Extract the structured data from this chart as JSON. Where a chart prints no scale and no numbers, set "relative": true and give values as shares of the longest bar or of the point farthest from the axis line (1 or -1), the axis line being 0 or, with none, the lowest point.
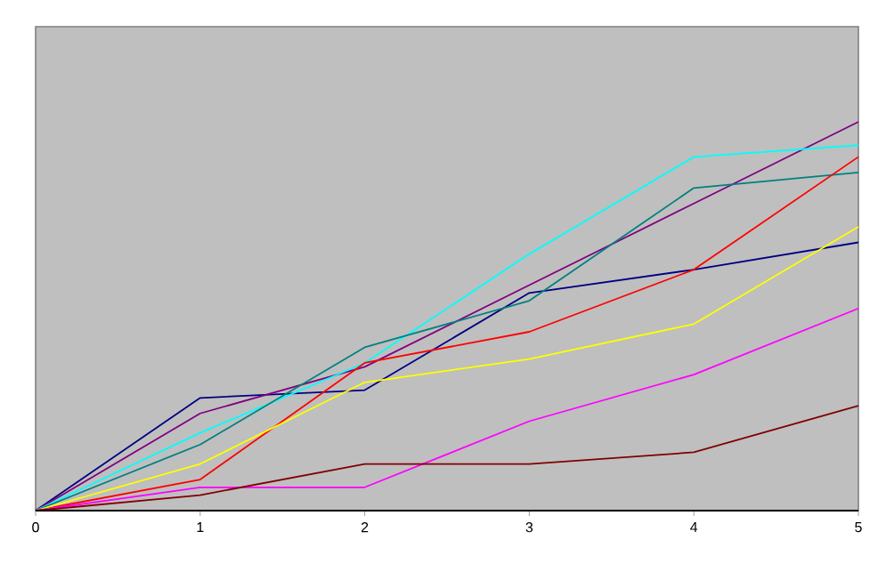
{
  "chart_data": {
    "type": "line",
    "relative": true,
    "tick_labels": "x",
    "x": [
      0,
      1,
      2,
      3,
      4,
      5
    ],
    "xlim": [
      0,
      5
    ],
    "xticks": [
      0,
      1,
      2,
      3,
      4,
      5
    ],
    "series": [
      {
        "color": "#000080",
        "values": [
          0,
          0.29,
          0.31,
          0.56,
          0.62,
          0.69
        ]
      },
      {
        "color": "#800080",
        "values": [
          0,
          0.25,
          0.37,
          0.58,
          0.79,
          1
        ]
      },
      {
        "color": "#00ffff",
        "values": [
          0,
          0.2,
          0.38,
          0.66,
          0.91,
          0.94
        ]
      },
      {
        "color": "#008080",
        "values": [
          0,
          0.17,
          0.42,
          0.54,
          0.83,
          0.87
        ]
      },
      {
        "color": "#ff0000",
        "values": [
          0,
          0.08,
          0.38,
          0.46,
          0.62,
          0.91
        ]
      },
      {
        "color": "#ffff00",
        "values": [
          0,
          0.12,
          0.33,
          0.39,
          0.48,
          0.73
        ]
      },
      {
        "color": "#ff00ff",
        "values": [
          0,
          0.06,
          0.06,
          0.23,
          0.35,
          0.52
        ]
      },
      {
        "color": "#800000",
        "values": [
          0,
          0.04,
          0.12,
          0.12,
          0.15,
          0.27
        ]
      }
    ]
  }
}
